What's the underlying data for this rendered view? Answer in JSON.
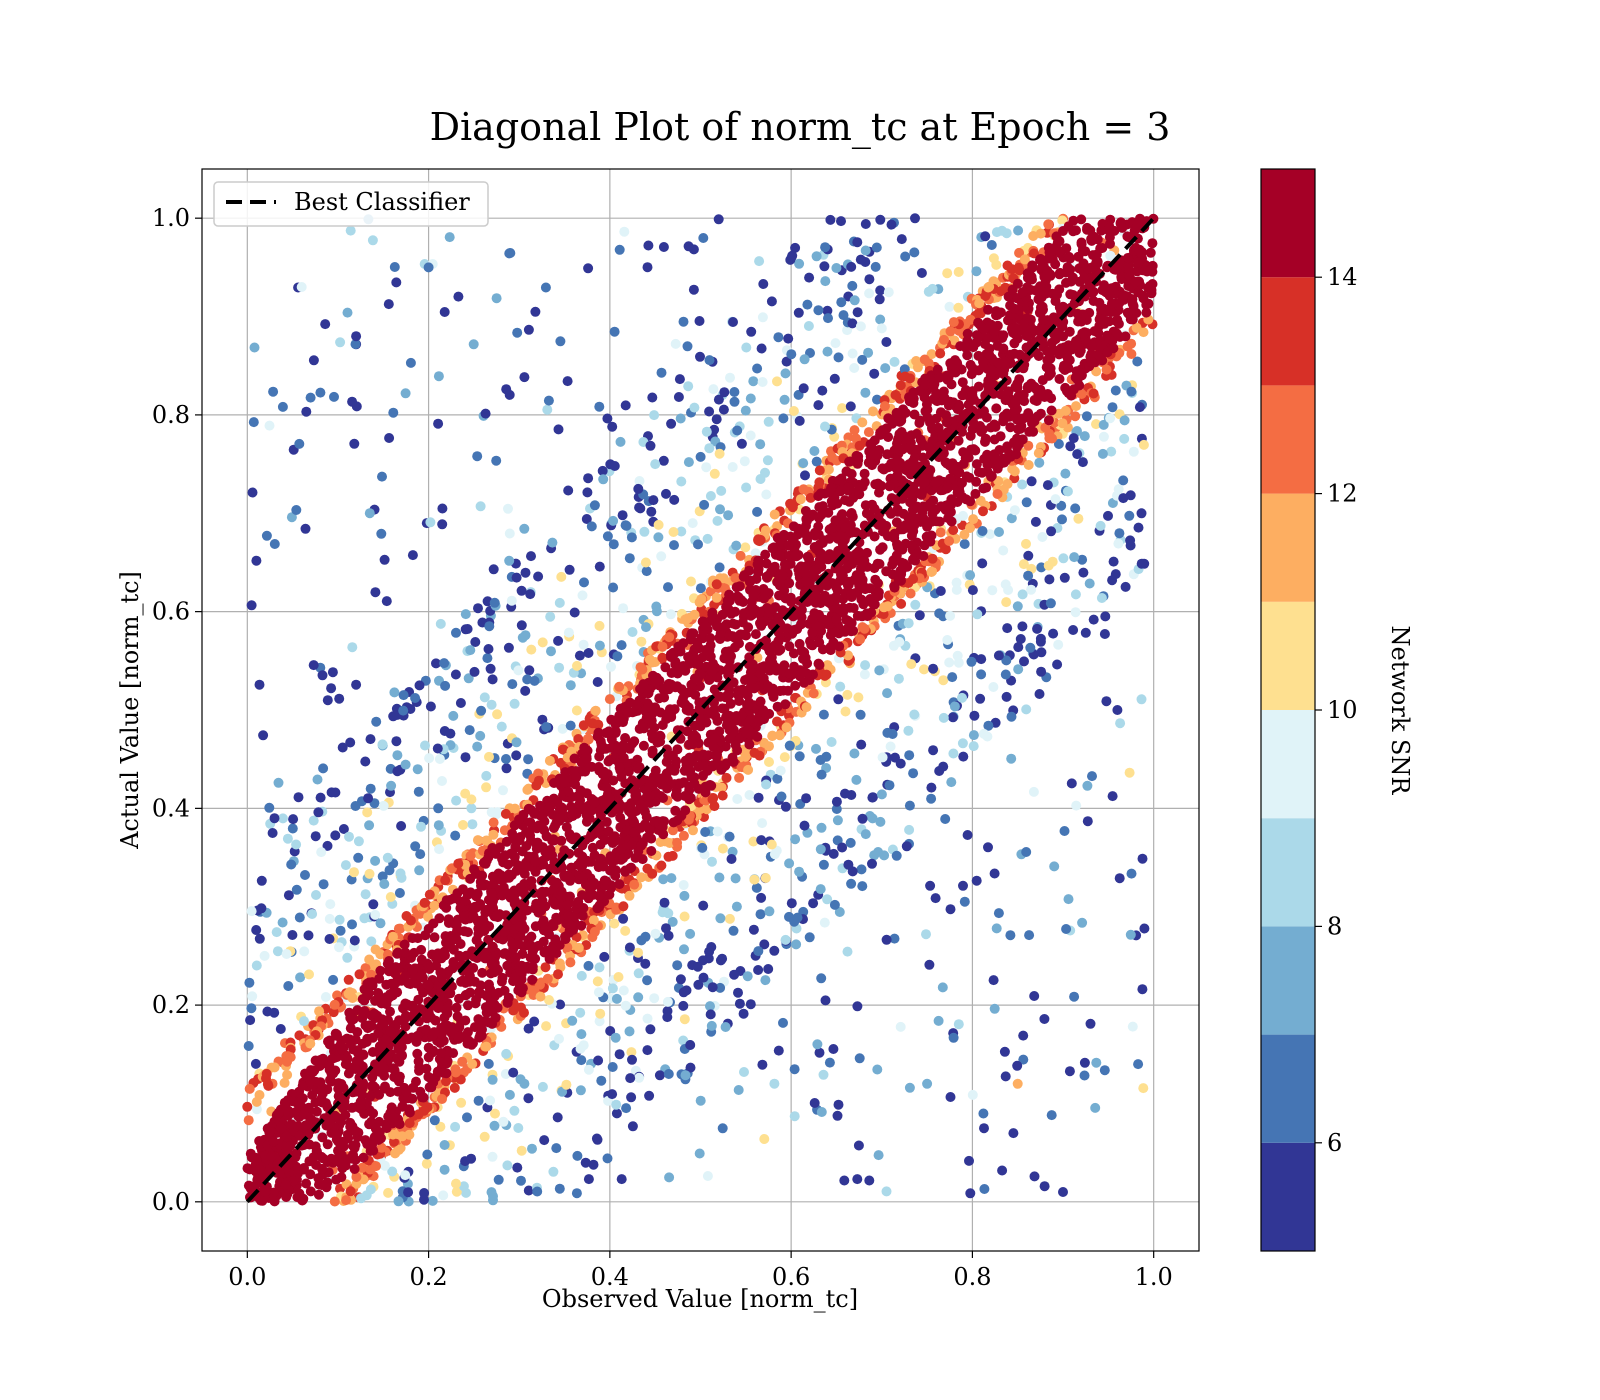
{
  "chart_data": {
    "type": "scatter",
    "title": "Diagonal Plot of norm_tc at Epoch = 3",
    "xlabel": "Observed Value [norm_tc]",
    "ylabel": "Actual Value [norm_tc]",
    "xlim": [
      -0.05,
      1.05
    ],
    "ylim": [
      -0.05,
      1.05
    ],
    "x_ticks": [
      0.0,
      0.2,
      0.4,
      0.6,
      0.8,
      1.0
    ],
    "y_ticks": [
      0.0,
      0.2,
      0.4,
      0.6,
      0.8,
      1.0
    ],
    "x_tick_labels": [
      "0.0",
      "0.2",
      "0.4",
      "0.6",
      "0.8",
      "1.0"
    ],
    "y_tick_labels": [
      "0.0",
      "0.2",
      "0.4",
      "0.6",
      "0.8",
      "1.0"
    ],
    "grid": true,
    "legend": {
      "position": "upper-left",
      "entries": [
        "Best Classifier"
      ]
    },
    "reference_line": {
      "name": "Best Classifier",
      "style": "dashed",
      "color": "#000000",
      "x": [
        0,
        1
      ],
      "y": [
        0,
        1
      ]
    },
    "colorbar": {
      "label": "Network SNR",
      "min": 5,
      "max": 15,
      "tick_values": [
        6,
        8,
        10,
        12,
        14
      ],
      "tick_labels": [
        "6",
        "8",
        "10",
        "12",
        "14"
      ],
      "levels": [
        5,
        6,
        7,
        8,
        9,
        10,
        11,
        12,
        13,
        14,
        15
      ],
      "colors": [
        "#313695",
        "#4575b4",
        "#74add1",
        "#abd9e9",
        "#e0f3f8",
        "#fee090",
        "#fdae61",
        "#f46d43",
        "#d73027",
        "#a50026"
      ]
    },
    "distribution": {
      "description_of_values": "points concentrated along y = x; high SNR (red) near diagonal, low SNR (blue) scattered away",
      "band_halfwidth_high_snr": 0.09,
      "sample_points": [
        [
          0.02,
          0.01,
          15
        ],
        [
          0.1,
          0.1,
          15
        ],
        [
          0.2,
          0.22,
          15
        ],
        [
          0.3,
          0.28,
          15
        ],
        [
          0.4,
          0.41,
          15
        ],
        [
          0.5,
          0.49,
          15
        ],
        [
          0.6,
          0.61,
          15
        ],
        [
          0.7,
          0.69,
          15
        ],
        [
          0.8,
          0.82,
          15
        ],
        [
          0.9,
          0.91,
          15
        ],
        [
          0.98,
          0.99,
          15
        ],
        [
          0.12,
          0.88,
          5
        ],
        [
          0.03,
          0.39,
          5
        ],
        [
          0.9,
          0.01,
          5
        ],
        [
          0.96,
          0.5,
          5
        ],
        [
          0.2,
          0.95,
          6
        ],
        [
          0.75,
          0.12,
          7
        ],
        [
          0.85,
          0.12,
          11
        ],
        [
          0.06,
          0.93,
          9
        ],
        [
          0.45,
          0.75,
          8
        ]
      ]
    }
  }
}
